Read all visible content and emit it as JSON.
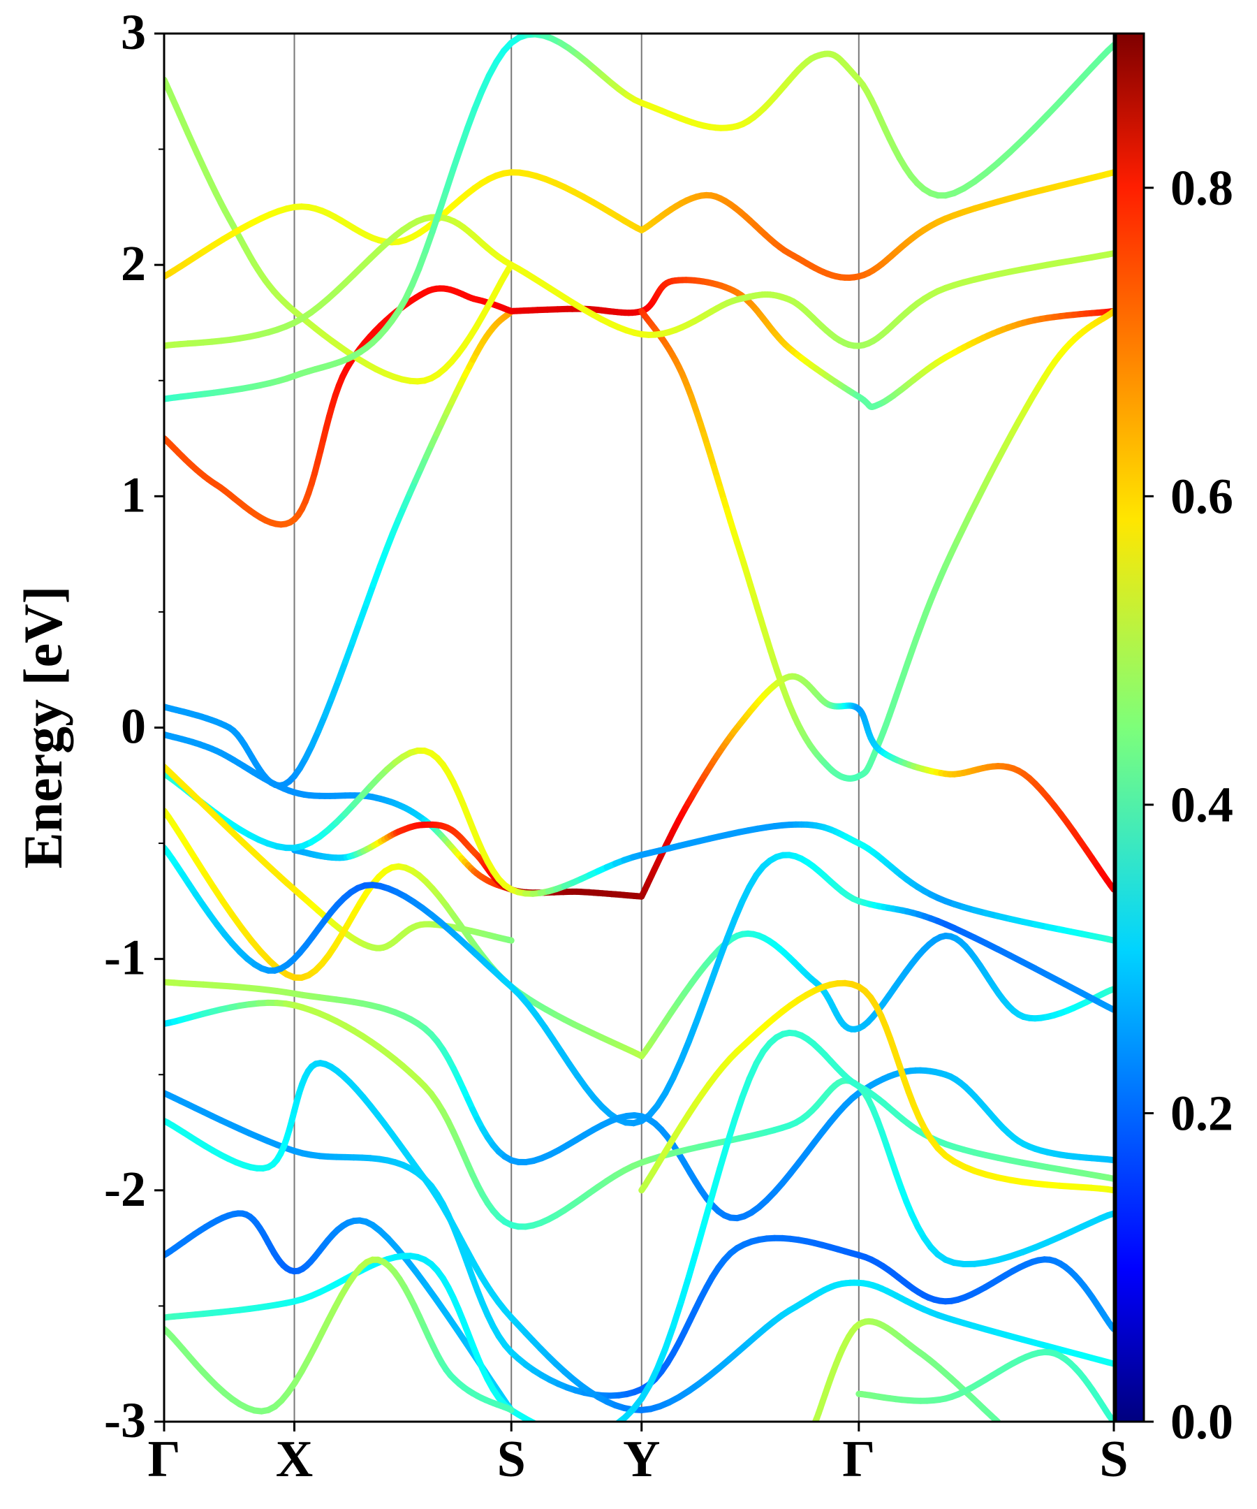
{
  "chart_data": {
    "type": "line",
    "title": "",
    "xlabel": "",
    "ylabel": "Energy [eV]",
    "ylim": [
      -3,
      3
    ],
    "grid": false,
    "legend": "none",
    "colormap": "jet",
    "colorbar": {
      "vmin": 0.0,
      "vmax": 0.9,
      "ticks": [
        "0.0",
        "0.2",
        "0.4",
        "0.6",
        "0.8"
      ],
      "tick_values": [
        0,
        0.2,
        0.4,
        0.6,
        0.8
      ]
    },
    "kpoints": [
      {
        "label": "Γ",
        "x": 0.0
      },
      {
        "label": "X",
        "x": 0.5
      },
      {
        "label": "S",
        "x": 1.333
      },
      {
        "label": "Y",
        "x": 1.833
      },
      {
        "label": "Γ",
        "x": 2.667
      },
      {
        "label": "S",
        "x": 3.646
      }
    ],
    "yticks": [
      -3,
      -2,
      -1,
      0,
      1,
      2,
      3
    ],
    "ytick_labels": [
      "-3",
      "-2",
      "-1",
      "0",
      "1",
      "2",
      "3"
    ],
    "series": [
      {
        "x": [
          0,
          0.25,
          0.5,
          0.9,
          1.2,
          1.333
        ],
        "y": [
          0.09,
          0.0,
          -0.21,
          0.9,
          1.62,
          1.8
        ],
        "c": [
          0.25,
          0.25,
          0.24,
          0.36,
          0.6,
          0.65
        ]
      },
      {
        "x": [
          1.333,
          1.6,
          1.833,
          1.95,
          2.2,
          2.4,
          2.667,
          2.75,
          3.0,
          3.3,
          3.646
        ],
        "y": [
          1.8,
          1.81,
          1.8,
          1.93,
          1.88,
          1.64,
          1.43,
          1.4,
          1.6,
          1.75,
          1.8
        ],
        "c": [
          0.8,
          0.82,
          0.8,
          0.75,
          0.68,
          0.6,
          0.42,
          0.42,
          0.55,
          0.65,
          0.78
        ]
      },
      {
        "x": [
          0,
          0.2,
          0.5,
          0.7,
          1.0,
          1.2,
          1.333
        ],
        "y": [
          1.25,
          1.05,
          0.9,
          1.55,
          1.88,
          1.85,
          1.8
        ],
        "c": [
          0.72,
          0.72,
          0.7,
          0.78,
          0.78,
          0.78,
          0.8
        ]
      },
      {
        "x": [
          1.833,
          2.0,
          2.2,
          2.4,
          2.55,
          2.667,
          2.75,
          3.0,
          3.4,
          3.646
        ],
        "y": [
          1.8,
          1.5,
          0.8,
          0.1,
          -0.17,
          -0.21,
          -0.05,
          0.7,
          1.55,
          1.8
        ],
        "c": [
          0.75,
          0.65,
          0.55,
          0.5,
          0.42,
          0.4,
          0.42,
          0.45,
          0.55,
          0.6
        ]
      },
      {
        "x": [
          0,
          0.2,
          0.5,
          0.8,
          1.0,
          1.2,
          1.333
        ],
        "y": [
          -0.03,
          -0.1,
          -0.28,
          -0.3,
          -0.4,
          -0.63,
          -0.7
        ],
        "c": [
          0.25,
          0.25,
          0.24,
          0.25,
          0.3,
          0.7,
          0.78
        ]
      },
      {
        "x": [
          0.5,
          0.7,
          0.9,
          1.0,
          1.1,
          1.2,
          1.333,
          1.6,
          1.833
        ],
        "y": [
          -0.53,
          -0.56,
          -0.45,
          -0.42,
          -0.44,
          -0.55,
          -0.7,
          -0.71,
          -0.73
        ],
        "c": [
          0.25,
          0.3,
          0.75,
          0.78,
          0.75,
          0.72,
          0.85,
          0.88,
          0.87
        ]
      },
      {
        "x": [
          1.833,
          2.0,
          2.2,
          2.4,
          2.55,
          2.667,
          2.75,
          3.0,
          3.3,
          3.646
        ],
        "y": [
          -0.73,
          -0.35,
          0.0,
          0.22,
          0.1,
          0.08,
          -0.1,
          -0.2,
          -0.2,
          -0.7
        ],
        "c": [
          0.87,
          0.78,
          0.62,
          0.5,
          0.45,
          0.25,
          0.3,
          0.6,
          0.7,
          0.8
        ]
      },
      {
        "x": [
          0,
          0.25,
          0.5,
          1.0,
          1.333
        ],
        "y": [
          2.8,
          2.2,
          1.8,
          1.5,
          2.0
        ],
        "c": [
          0.48,
          0.48,
          0.5,
          0.55,
          0.55
        ]
      },
      {
        "x": [
          0,
          0.5,
          0.9,
          1.333,
          1.833
        ],
        "y": [
          1.95,
          2.25,
          2.1,
          2.4,
          2.15
        ],
        "c": [
          0.6,
          0.55,
          0.55,
          0.58,
          0.6
        ]
      },
      {
        "x": [
          1.833,
          2.1,
          2.4,
          2.667,
          3.0,
          3.646
        ],
        "y": [
          2.15,
          2.3,
          2.05,
          1.95,
          2.2,
          2.4
        ],
        "c": [
          0.6,
          0.65,
          0.7,
          0.7,
          0.62,
          0.58
        ]
      },
      {
        "x": [
          0,
          0.5,
          1.0,
          1.333,
          1.833,
          2.2,
          2.4,
          2.667,
          3.0,
          3.646
        ],
        "y": [
          1.65,
          1.75,
          2.2,
          2.0,
          1.7,
          1.85,
          1.85,
          1.65,
          1.9,
          2.05
        ],
        "c": [
          0.5,
          0.48,
          0.5,
          0.55,
          0.55,
          0.5,
          0.5,
          0.48,
          0.5,
          0.5
        ]
      },
      {
        "x": [
          0,
          0.5,
          0.9,
          1.333,
          1.833,
          2.2,
          2.5,
          2.667,
          3.0,
          3.646
        ],
        "y": [
          1.42,
          1.52,
          1.8,
          2.96,
          2.7,
          2.6,
          2.9,
          2.8,
          2.3,
          2.95
        ],
        "c": [
          0.38,
          0.45,
          0.45,
          0.35,
          0.55,
          0.55,
          0.5,
          0.5,
          0.45,
          0.42
        ]
      },
      {
        "x": [
          0,
          0.5,
          1.0,
          1.333,
          1.833,
          2.4,
          2.667,
          3.0,
          3.646
        ],
        "y": [
          -0.2,
          -0.52,
          -0.1,
          -0.7,
          -0.55,
          -0.42,
          -0.5,
          -0.75,
          -0.92
        ],
        "c": [
          0.38,
          0.3,
          0.55,
          0.55,
          0.25,
          0.25,
          0.35,
          0.25,
          0.38
        ]
      },
      {
        "x": [
          0,
          0.5,
          0.8,
          1.0,
          1.333
        ],
        "y": [
          -0.17,
          -0.7,
          -0.95,
          -0.85,
          -0.92
        ],
        "c": [
          0.58,
          0.58,
          0.5,
          0.5,
          0.45
        ]
      },
      {
        "x": [
          0,
          0.5,
          0.9,
          1.333,
          1.833
        ],
        "y": [
          -0.36,
          -1.08,
          -0.6,
          -1.12,
          -1.42
        ],
        "c": [
          0.55,
          0.6,
          0.55,
          0.42,
          0.5
        ]
      },
      {
        "x": [
          1.833,
          2.2,
          2.5,
          2.667,
          3.0,
          3.3,
          3.646
        ],
        "y": [
          -1.42,
          -0.9,
          -1.1,
          -1.3,
          -0.9,
          -1.25,
          -1.13
        ],
        "c": [
          0.5,
          0.38,
          0.3,
          0.28,
          0.25,
          0.3,
          0.38
        ]
      },
      {
        "x": [
          0,
          0.4,
          0.8,
          1.333,
          1.833,
          2.3,
          2.667,
          3.0,
          3.646
        ],
        "y": [
          -0.52,
          -1.05,
          -0.68,
          -1.12,
          -1.7,
          -0.6,
          -0.75,
          -0.85,
          -1.22
        ],
        "c": [
          0.35,
          0.25,
          0.2,
          0.3,
          0.25,
          0.3,
          0.38,
          0.2,
          0.25
        ]
      },
      {
        "x": [
          0,
          0.5,
          1.0,
          1.333,
          1.833,
          2.2,
          2.667,
          3.0,
          3.3,
          3.646
        ],
        "y": [
          -1.1,
          -1.15,
          -1.3,
          -1.87,
          -1.68,
          -2.12,
          -1.58,
          -1.5,
          -1.8,
          -1.87
        ],
        "c": [
          0.5,
          0.48,
          0.42,
          0.25,
          0.25,
          0.22,
          0.25,
          0.28,
          0.3,
          0.28
        ]
      },
      {
        "x": [
          0,
          0.5,
          1.0,
          1.333,
          1.833,
          2.4,
          2.667,
          3.0,
          3.646
        ],
        "y": [
          -1.28,
          -1.2,
          -1.55,
          -2.15,
          -1.88,
          -1.72,
          -1.55,
          -2.3,
          -2.1
        ],
        "c": [
          0.3,
          0.5,
          0.5,
          0.38,
          0.45,
          0.38,
          0.4,
          0.3,
          0.3
        ]
      },
      {
        "x": [
          0,
          0.5,
          1.0,
          1.333,
          1.833,
          2.2,
          2.667,
          3.0,
          3.4,
          3.646
        ],
        "y": [
          -1.58,
          -1.83,
          -1.95,
          -2.7,
          -2.86,
          -2.25,
          -2.28,
          -2.48,
          -2.3,
          -2.6
        ],
        "c": [
          0.25,
          0.25,
          0.3,
          0.3,
          0.2,
          0.22,
          0.2,
          0.2,
          0.22,
          0.25
        ]
      },
      {
        "x": [
          0,
          0.4,
          0.6,
          1.0,
          1.333,
          1.833,
          2.4,
          2.667,
          3.0,
          3.646
        ],
        "y": [
          -1.7,
          -1.9,
          -1.45,
          -1.95,
          -2.55,
          -2.95,
          -2.52,
          -2.4,
          -2.55,
          -2.75
        ],
        "c": [
          0.35,
          0.35,
          0.3,
          0.3,
          0.3,
          0.22,
          0.3,
          0.32,
          0.3,
          0.35
        ]
      },
      {
        "x": [
          0,
          0.3,
          0.5,
          0.8,
          1.333
        ],
        "y": [
          -2.28,
          -2.1,
          -2.35,
          -2.15,
          -2.95
        ],
        "c": [
          0.22,
          0.22,
          0.2,
          0.25,
          0.3
        ]
      },
      {
        "x": [
          0,
          0.5,
          1.0,
          1.333,
          1.833,
          2.3,
          2.667,
          3.0,
          3.646
        ],
        "y": [
          -2.55,
          -2.48,
          -2.3,
          -2.95,
          -2.9,
          -1.4,
          -1.55,
          -1.8,
          -1.95
        ],
        "c": [
          0.4,
          0.35,
          0.32,
          0.35,
          0.3,
          0.38,
          0.38,
          0.4,
          0.45
        ]
      },
      {
        "x": [
          0,
          0.4,
          0.8,
          1.1,
          1.333
        ],
        "y": [
          -2.6,
          -2.95,
          -2.3,
          -2.8,
          -2.95
        ],
        "c": [
          0.45,
          0.45,
          0.5,
          0.4,
          0.4
        ]
      },
      {
        "x": [
          1.833,
          2.2,
          2.667,
          3.0,
          3.646
        ],
        "y": [
          -2.0,
          -1.4,
          -1.12,
          -1.85,
          -2.0
        ],
        "c": [
          0.5,
          0.55,
          0.6,
          0.58,
          0.55
        ]
      },
      {
        "x": [
          2.5,
          2.667,
          2.9,
          3.2
        ],
        "y": [
          -3.0,
          -2.58,
          -2.7,
          -3.0
        ],
        "c": [
          0.5,
          0.5,
          0.45,
          0.42
        ]
      },
      {
        "x": [
          2.667,
          3.0,
          3.4,
          3.646
        ],
        "y": [
          -2.88,
          -2.9,
          -2.7,
          -3.0
        ],
        "c": [
          0.45,
          0.42,
          0.4,
          0.38
        ]
      }
    ]
  }
}
